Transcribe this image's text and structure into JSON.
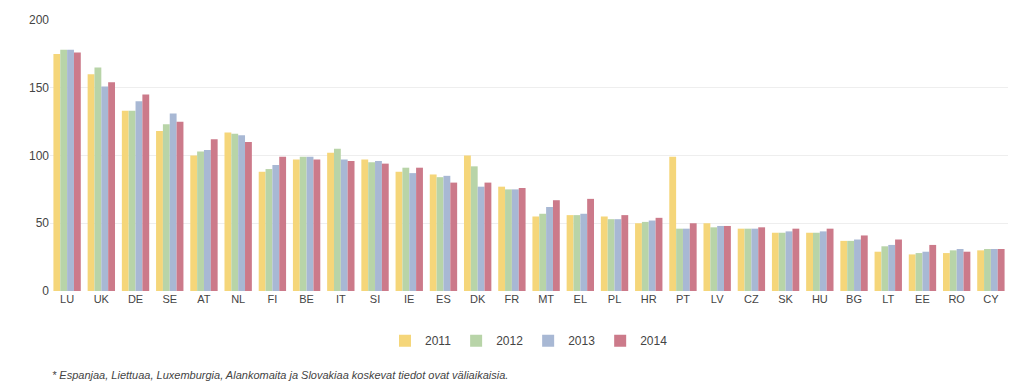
{
  "chart_data": {
    "type": "bar",
    "categories": [
      "LU",
      "UK",
      "DE",
      "SE",
      "AT",
      "NL",
      "FI",
      "BE",
      "IT",
      "SI",
      "IE",
      "ES",
      "DK",
      "FR",
      "MT",
      "EL",
      "PL",
      "HR",
      "PT",
      "LV",
      "CZ",
      "SK",
      "HU",
      "BG",
      "LT",
      "EE",
      "RO",
      "CY"
    ],
    "series": [
      {
        "name": "2011",
        "color": "#f5d67a",
        "values": [
          175,
          160,
          133,
          118,
          100,
          117,
          88,
          97,
          102,
          97,
          88,
          86,
          100,
          77,
          55,
          56,
          55,
          50,
          99,
          50,
          46,
          43,
          43,
          37,
          29,
          27,
          28,
          30
        ]
      },
      {
        "name": "2012",
        "color": "#b8d4a8",
        "values": [
          178,
          165,
          133,
          123,
          103,
          116,
          90,
          99,
          105,
          95,
          91,
          84,
          92,
          75,
          57,
          56,
          53,
          51,
          46,
          47,
          46,
          43,
          43,
          37,
          33,
          28,
          30,
          31
        ]
      },
      {
        "name": "2013",
        "color": "#a8b8d4",
        "values": [
          178,
          151,
          140,
          131,
          104,
          115,
          93,
          99,
          97,
          96,
          87,
          85,
          77,
          75,
          62,
          57,
          53,
          52,
          46,
          48,
          46,
          44,
          44,
          38,
          34,
          29,
          31,
          31
        ]
      },
      {
        "name": "2014",
        "color": "#cc7a8a",
        "values": [
          176,
          154,
          145,
          125,
          112,
          110,
          99,
          97,
          96,
          94,
          91,
          80,
          80,
          76,
          67,
          68,
          56,
          54,
          50,
          48,
          47,
          46,
          46,
          41,
          38,
          34,
          29,
          31
        ]
      }
    ],
    "ylim": [
      0,
      200
    ],
    "yticks": [
      0,
      50,
      100,
      150,
      200
    ],
    "grid": true,
    "legend": "bottom",
    "annotations": [
      "* Espanjaa, Liettuaa, Luxemburgia, Alankomaita ja Slovakiaa koskevat tiedot ovat väliaikaisia."
    ]
  }
}
